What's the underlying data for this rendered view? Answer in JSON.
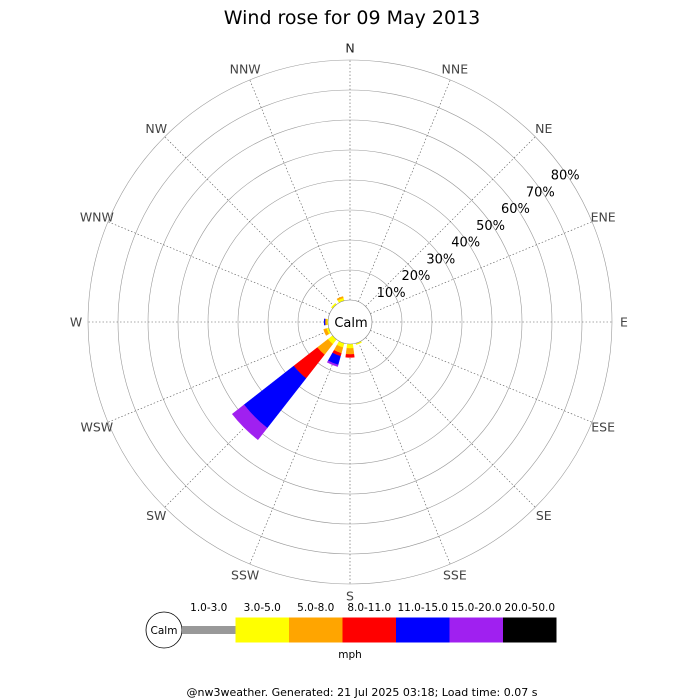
{
  "title": "Wind rose for 09 May 2013",
  "calm_label": "Calm",
  "units": "mph",
  "footer": "@nw3weather. Generated: 21 Jul 2025 03:18; Load time: 0.07 s",
  "directions": [
    "N",
    "NNE",
    "NE",
    "ENE",
    "E",
    "ESE",
    "SE",
    "SSE",
    "S",
    "SSW",
    "SW",
    "WSW",
    "W",
    "WNW",
    "NW",
    "NNW"
  ],
  "ring_labels": [
    "10%",
    "20%",
    "30%",
    "40%",
    "50%",
    "60%",
    "70%",
    "80%"
  ],
  "legend": [
    {
      "label": "1.0-3.0",
      "color": "#999999"
    },
    {
      "label": "3.0-5.0",
      "color": "#ffff00"
    },
    {
      "label": "5.0-8.0",
      "color": "#ffa500"
    },
    {
      "label": "8.0-11.0",
      "color": "#ff0000"
    },
    {
      "label": "11.0-15.0",
      "color": "#0000ff"
    },
    {
      "label": "15.0-20.0",
      "color": "#a020f0"
    },
    {
      "label": "20.0-50.0",
      "color": "#000000"
    }
  ],
  "chart_data": {
    "type": "wind-rose",
    "title": "Wind rose for 09 May 2013",
    "unit": "%",
    "rmax": 80,
    "speed_bins": [
      "1.0-3.0",
      "3.0-5.0",
      "5.0-8.0",
      "8.0-11.0",
      "11.0-15.0",
      "15.0-20.0",
      "20.0-50.0"
    ],
    "directions": [
      "N",
      "NNE",
      "NE",
      "ENE",
      "E",
      "ESE",
      "SE",
      "SSE",
      "S",
      "SSW",
      "SW",
      "WSW",
      "W",
      "WNW",
      "NW",
      "NNW"
    ],
    "series": [
      {
        "name": "1.0-3.0",
        "values": [
          0,
          0,
          0,
          0,
          0,
          0,
          0,
          0,
          0,
          0,
          0,
          0,
          0,
          0,
          0,
          0
        ]
      },
      {
        "name": "3.0-5.0",
        "values": [
          0,
          0,
          0,
          0,
          0,
          0,
          0,
          0.5,
          1.5,
          1.5,
          2,
          0.8,
          0.5,
          0,
          0.6,
          1
        ]
      },
      {
        "name": "5.0-8.0",
        "values": [
          0,
          0,
          0,
          0,
          0,
          0,
          0,
          0,
          2,
          2,
          4.5,
          1,
          0.5,
          0,
          0,
          0.5
        ]
      },
      {
        "name": "8.0-11.0",
        "values": [
          0,
          0,
          0,
          0,
          0,
          0,
          0,
          0,
          1,
          1,
          10,
          0,
          0,
          0,
          0,
          0
        ]
      },
      {
        "name": "11.0-15.0",
        "values": [
          0,
          0,
          0,
          0,
          0,
          0,
          0,
          0,
          0,
          3,
          21,
          0,
          0.3,
          0,
          0,
          0
        ]
      },
      {
        "name": "15.0-20.0",
        "values": [
          0,
          0,
          0,
          0,
          0,
          0,
          0,
          0,
          0,
          0.6,
          5,
          0,
          0,
          0,
          0,
          0
        ]
      },
      {
        "name": "20.0-50.0",
        "values": [
          0,
          0,
          0,
          0,
          0,
          0,
          0,
          0,
          0,
          0,
          0,
          0,
          0,
          0,
          0,
          0
        ]
      }
    ]
  }
}
